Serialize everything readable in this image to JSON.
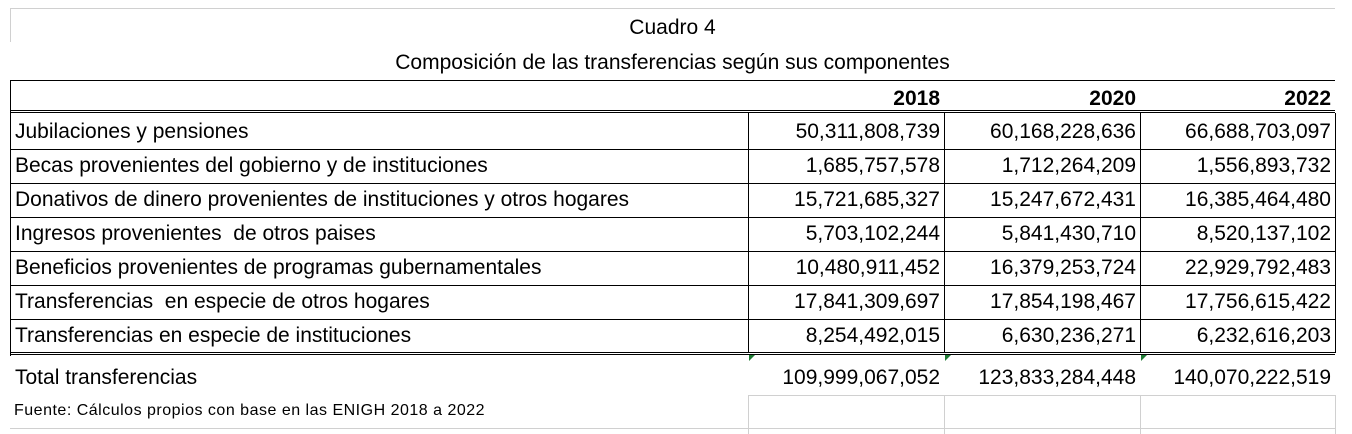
{
  "title": "Cuadro 4",
  "subtitle": "Composición de las transferencias según sus componentes",
  "table": {
    "columns": [
      "2018",
      "2020",
      "2022"
    ],
    "rows": [
      [
        "Jubilaciones y pensiones",
        "50,311,808,739",
        "60,168,228,636",
        "66,688,703,097"
      ],
      [
        "Becas provenientes del gobierno y de instituciones",
        "1,685,757,578",
        "1,712,264,209",
        "1,556,893,732"
      ],
      [
        "Donativos de dinero provenientes de instituciones y otros hogares",
        "15,721,685,327",
        "15,247,672,431",
        "16,385,464,480"
      ],
      [
        "Ingresos provenientes  de otros paises",
        "5,703,102,244",
        "5,841,430,710",
        "8,520,137,102"
      ],
      [
        "Beneficios provenientes de programas gubernamentales",
        "10,480,911,452",
        "16,379,253,724",
        "22,929,792,483"
      ],
      [
        "Transferencias  en especie de otros hogares",
        "17,841,309,697",
        "17,854,198,467",
        "17,756,615,422"
      ],
      [
        "Transferencias en especie de instituciones",
        "8,254,492,015",
        "6,630,236,271",
        "6,232,616,203"
      ]
    ],
    "total": [
      "Total transferencias",
      "109,999,067,052",
      "123,833,284,448",
      "140,070,222,519"
    ]
  },
  "source": "Fuente: Cálculos propios con base en las ENIGH 2018 a 2022"
}
